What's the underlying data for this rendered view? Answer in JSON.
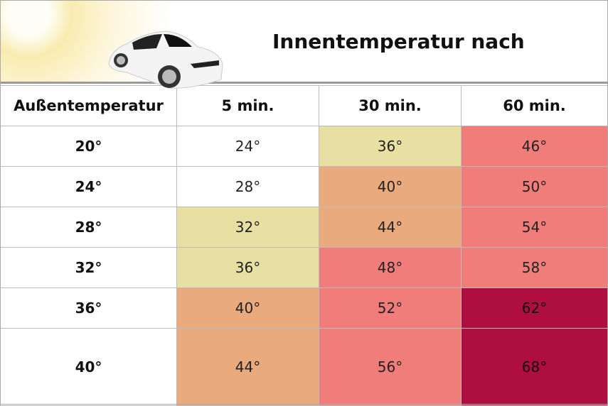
{
  "title": "Innentemperatur nach",
  "colors": {
    "white": "#ffffff",
    "yellow": "#e8e0a2",
    "orange": "#e9aa7d",
    "salmon": "#f07d79",
    "crimson": "#ae0f40"
  },
  "headers": [
    "Außentemperatur",
    "5 min.",
    "30 min.",
    "60 min."
  ],
  "rows": [
    {
      "outside": "20°",
      "cells": [
        {
          "v": "24°",
          "c": "white"
        },
        {
          "v": "36°",
          "c": "yellow"
        },
        {
          "v": "46°",
          "c": "salmon"
        }
      ]
    },
    {
      "outside": "24°",
      "cells": [
        {
          "v": "28°",
          "c": "white"
        },
        {
          "v": "40°",
          "c": "orange"
        },
        {
          "v": "50°",
          "c": "salmon"
        }
      ]
    },
    {
      "outside": "28°",
      "cells": [
        {
          "v": "32°",
          "c": "yellow"
        },
        {
          "v": "44°",
          "c": "orange"
        },
        {
          "v": "54°",
          "c": "salmon"
        }
      ]
    },
    {
      "outside": "32°",
      "cells": [
        {
          "v": "36°",
          "c": "yellow"
        },
        {
          "v": "48°",
          "c": "salmon"
        },
        {
          "v": "58°",
          "c": "salmon"
        }
      ]
    },
    {
      "outside": "36°",
      "cells": [
        {
          "v": "40°",
          "c": "orange"
        },
        {
          "v": "52°",
          "c": "salmon"
        },
        {
          "v": "62°",
          "c": "crimson"
        }
      ]
    },
    {
      "outside": "40°",
      "cells": [
        {
          "v": "44°",
          "c": "orange"
        },
        {
          "v": "56°",
          "c": "salmon"
        },
        {
          "v": "68°",
          "c": "crimson"
        }
      ]
    }
  ]
}
